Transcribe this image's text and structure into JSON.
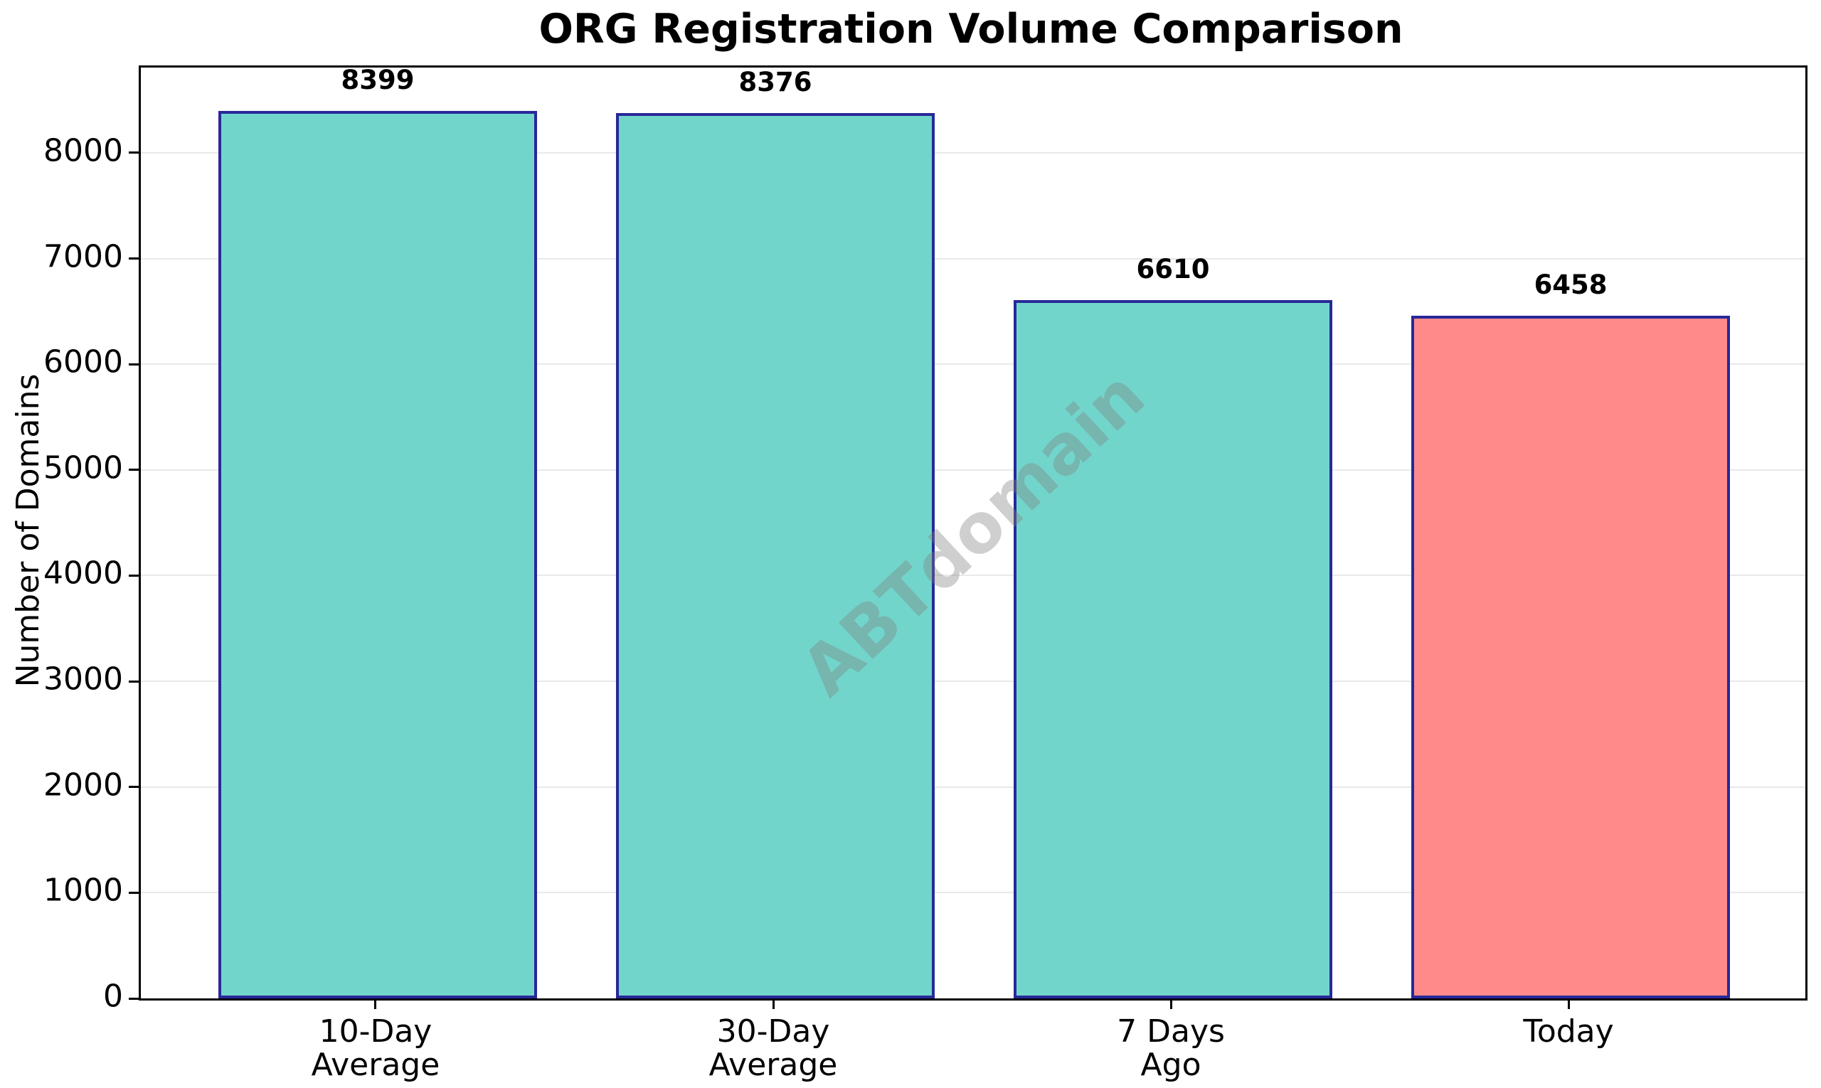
{
  "chart_data": {
    "type": "bar",
    "title": "ORG Registration Volume Comparison",
    "ylabel": "Number of Domains",
    "xlabel": "",
    "categories": [
      "10-Day\nAverage",
      "30-Day\nAverage",
      "7 Days\nAgo",
      "Today"
    ],
    "values": [
      8399,
      8376,
      6610,
      6458
    ],
    "bar_colors": [
      "#72d5cb",
      "#72d5cb",
      "#72d5cb",
      "#ff8a8a"
    ],
    "bar_edge_color": "#28289a",
    "ylim": [
      0,
      8807
    ],
    "yticks": [
      0,
      1000,
      2000,
      3000,
      4000,
      5000,
      6000,
      7000,
      8000
    ],
    "grid": "horizontal",
    "grid_color": "#e9e9e9",
    "legend_position": "none",
    "watermark": "ABTdomain"
  }
}
